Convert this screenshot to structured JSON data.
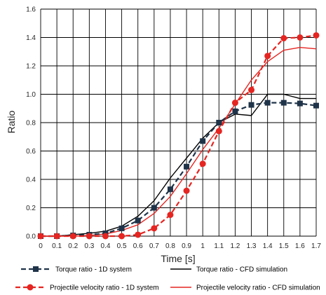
{
  "chart_data": {
    "type": "line",
    "xlabel": "Time [s]",
    "ylabel": "Ratio",
    "xlim": [
      0,
      1.7
    ],
    "ylim": [
      0,
      1.6
    ],
    "grid": true,
    "legend_placement": "bottom",
    "x_ticks": [
      "0",
      "0.1",
      "0.2",
      "0.3",
      "0.4",
      "0.5",
      "0.6",
      "0.7",
      "0.8",
      "0.9",
      "1",
      "1.1",
      "1.2",
      "1.3",
      "1.4",
      "1.5",
      "1.6",
      "1.7"
    ],
    "y_ticks": [
      "0.0",
      "0.2",
      "0.4",
      "0.6",
      "0.8",
      "1.0",
      "1.2",
      "1.4",
      "1.6"
    ],
    "series": [
      {
        "name": "Torque ratio - 1D system",
        "color": "#1f3349",
        "style": "dashed",
        "marker": "square",
        "x": [
          0,
          0.1,
          0.2,
          0.3,
          0.4,
          0.5,
          0.6,
          0.7,
          0.8,
          0.9,
          1.0,
          1.1,
          1.2,
          1.3,
          1.4,
          1.5,
          1.6,
          1.7
        ],
        "y": [
          0.0,
          0.0,
          0.005,
          0.01,
          0.02,
          0.055,
          0.11,
          0.2,
          0.33,
          0.49,
          0.67,
          0.8,
          0.88,
          0.925,
          0.94,
          0.94,
          0.935,
          0.92
        ]
      },
      {
        "name": "Torque ratio - CFD simulation",
        "color": "#000000",
        "style": "solid",
        "marker": "none",
        "x": [
          0,
          0.1,
          0.2,
          0.3,
          0.4,
          0.5,
          0.6,
          0.7,
          0.8,
          0.9,
          1.0,
          1.1,
          1.2,
          1.3,
          1.4,
          1.5,
          1.6,
          1.7
        ],
        "y": [
          0.0,
          0.0,
          0.01,
          0.02,
          0.035,
          0.07,
          0.14,
          0.25,
          0.41,
          0.55,
          0.69,
          0.8,
          0.86,
          0.85,
          1.0,
          1.0,
          0.97,
          0.97
        ]
      },
      {
        "name": "Projectile velocity ratio  - 1D system",
        "color": "#e52521",
        "style": "dashed",
        "marker": "circle",
        "x": [
          0,
          0.1,
          0.2,
          0.3,
          0.4,
          0.5,
          0.6,
          0.7,
          0.8,
          0.9,
          1.0,
          1.1,
          1.2,
          1.3,
          1.4,
          1.5,
          1.6,
          1.7
        ],
        "y": [
          0.0,
          0.0,
          0.0,
          0.0,
          0.0,
          0.0,
          0.01,
          0.055,
          0.15,
          0.32,
          0.51,
          0.74,
          0.94,
          1.03,
          1.27,
          1.395,
          1.4,
          1.415
        ]
      },
      {
        "name": "Projectile velocity ratio  - CFD simulation",
        "color": "#e52521",
        "style": "solid",
        "marker": "none",
        "x": [
          0,
          0.1,
          0.2,
          0.3,
          0.4,
          0.5,
          0.6,
          0.7,
          0.8,
          0.9,
          1.0,
          1.1,
          1.2,
          1.3,
          1.4,
          1.5,
          1.6,
          1.7
        ],
        "y": [
          0.0,
          0.0,
          0.0,
          0.005,
          0.015,
          0.04,
          0.08,
          0.16,
          0.28,
          0.44,
          0.61,
          0.76,
          0.93,
          1.1,
          1.23,
          1.31,
          1.33,
          1.32
        ]
      }
    ]
  }
}
